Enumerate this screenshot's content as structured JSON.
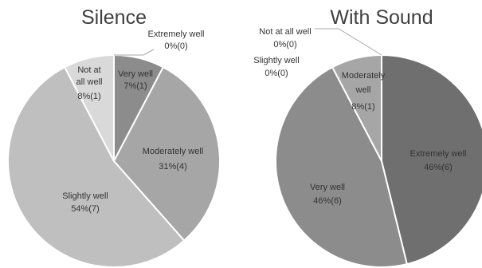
{
  "chart_data": [
    {
      "type": "pie",
      "title": "Silence",
      "slices": [
        {
          "name": "Extremely well",
          "value": 0,
          "percent": "0%",
          "count": "(0)",
          "color": "#7f7f7f"
        },
        {
          "name": "Very well",
          "value": 1,
          "percent": "7%",
          "count": "(1)",
          "color": "#8c8c8c"
        },
        {
          "name": "Moderately well",
          "value": 4,
          "percent": "31%",
          "count": "(4)",
          "color": "#a6a6a6"
        },
        {
          "name": "Slightly well",
          "value": 7,
          "percent": "54%",
          "count": "(7)",
          "color": "#bfbfbf"
        },
        {
          "name": "Not at all well",
          "value": 1,
          "percent": "8%",
          "count": "(1)",
          "color": "#d9d9d9"
        }
      ],
      "labels": {
        "extremely_well": {
          "line1": "Extremely well",
          "line2": "0%(0)"
        },
        "very_well": {
          "line1": "Very well",
          "line2": "7%(1)"
        },
        "moderately_well": {
          "line1": "Moderately well",
          "line2": "31%(4)"
        },
        "slightly_well": {
          "line1": "Slightly well",
          "line2": "54%(7)"
        },
        "not_at_all_well": {
          "line1": "Not at",
          "line2": "all well",
          "line3": "8%(1)"
        }
      }
    },
    {
      "type": "pie",
      "title": "With Sound",
      "slices": [
        {
          "name": "Extremely well",
          "value": 6,
          "percent": "46%",
          "count": "(6)",
          "color": "#6f6f6f"
        },
        {
          "name": "Very well",
          "value": 6,
          "percent": "46%",
          "count": "(6)",
          "color": "#8c8c8c"
        },
        {
          "name": "Moderately well",
          "value": 1,
          "percent": "8%",
          "count": "(1)",
          "color": "#a6a6a6"
        },
        {
          "name": "Slightly well",
          "value": 0,
          "percent": "0%",
          "count": "(0)",
          "color": "#bfbfbf"
        },
        {
          "name": "Not at all well",
          "value": 0,
          "percent": "0%",
          "count": "(0)",
          "color": "#d9d9d9"
        }
      ],
      "labels": {
        "not_at_all_well": {
          "line1": "Not at all well",
          "line2": "0%(0)"
        },
        "slightly_well": {
          "line1": "Slightly well",
          "line2": "0%(0)"
        },
        "moderately_well": {
          "line1": "Moderately",
          "line2": "well",
          "line3": "8%(1)"
        },
        "extremely_well": {
          "line1": "Extremely well",
          "line2": "46%(6)"
        },
        "very_well": {
          "line1": "Very well",
          "line2": "46%(6)"
        }
      }
    }
  ]
}
